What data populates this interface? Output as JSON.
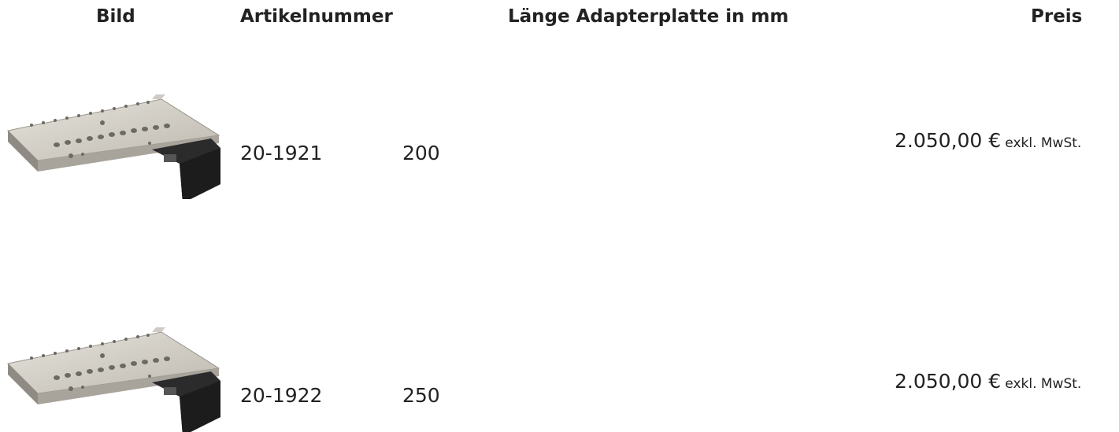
{
  "table": {
    "header": [
      "Bild",
      "Artikelnummer",
      "Länge Adapterplatte in mm",
      "Preis"
    ],
    "rows": [
      {
        "article": "20-1921",
        "length": "200",
        "price": "2.050,00 €",
        "tax_note": "exkl. MwSt."
      },
      {
        "article": "20-1922",
        "length": "250",
        "price": "2.050,00 €",
        "tax_note": "exkl. MwSt."
      }
    ]
  }
}
